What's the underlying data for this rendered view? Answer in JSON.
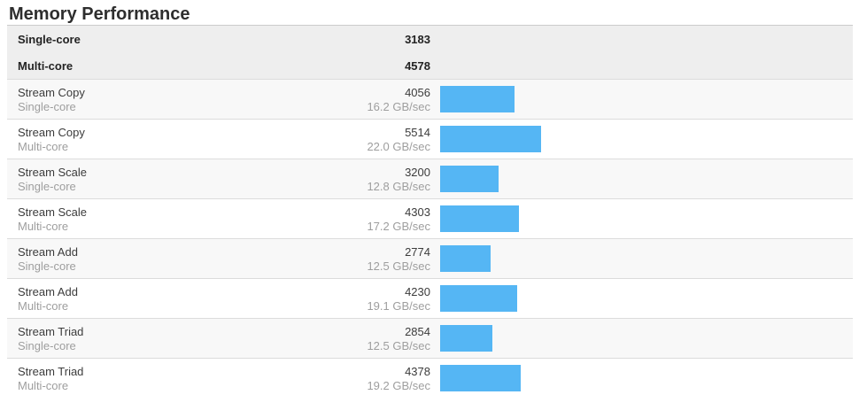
{
  "section": {
    "title": "Memory Performance"
  },
  "summary": {
    "rows": [
      {
        "label": "Single-core",
        "score": "3183"
      },
      {
        "label": "Multi-core",
        "score": "4578"
      }
    ]
  },
  "results": [
    {
      "name": "Stream Copy",
      "mode": "Single-core",
      "score": 4056,
      "throughput": "16.2 GB/sec"
    },
    {
      "name": "Stream Copy",
      "mode": "Multi-core",
      "score": 5514,
      "throughput": "22.0 GB/sec"
    },
    {
      "name": "Stream Scale",
      "mode": "Single-core",
      "score": 3200,
      "throughput": "12.8 GB/sec"
    },
    {
      "name": "Stream Scale",
      "mode": "Multi-core",
      "score": 4303,
      "throughput": "17.2 GB/sec"
    },
    {
      "name": "Stream Add",
      "mode": "Single-core",
      "score": 2774,
      "throughput": "12.5 GB/sec"
    },
    {
      "name": "Stream Add",
      "mode": "Multi-core",
      "score": 4230,
      "throughput": "19.1 GB/sec"
    },
    {
      "name": "Stream Triad",
      "mode": "Single-core",
      "score": 2854,
      "throughput": "12.5 GB/sec"
    },
    {
      "name": "Stream Triad",
      "mode": "Multi-core",
      "score": 4378,
      "throughput": "19.2 GB/sec"
    }
  ],
  "chart_data": {
    "type": "bar",
    "orientation": "horizontal",
    "title": "Memory Performance",
    "legend": false,
    "grid": false,
    "bar_color": "#55b6f4",
    "summary_scores": {
      "Single-core": 3183,
      "Multi-core": 4578
    },
    "categories": [
      "Stream Copy (Single-core)",
      "Stream Copy (Multi-core)",
      "Stream Scale (Single-core)",
      "Stream Scale (Multi-core)",
      "Stream Add (Single-core)",
      "Stream Add (Multi-core)",
      "Stream Triad (Single-core)",
      "Stream Triad (Multi-core)"
    ],
    "values": [
      4056,
      5514,
      3200,
      4303,
      2774,
      4230,
      2854,
      4378
    ],
    "value_annotations": [
      "16.2 GB/sec",
      "22.0 GB/sec",
      "12.8 GB/sec",
      "17.2 GB/sec",
      "12.5 GB/sec",
      "19.1 GB/sec",
      "12.5 GB/sec",
      "19.2 GB/sec"
    ],
    "bar_length_basis": "proportional to score"
  }
}
